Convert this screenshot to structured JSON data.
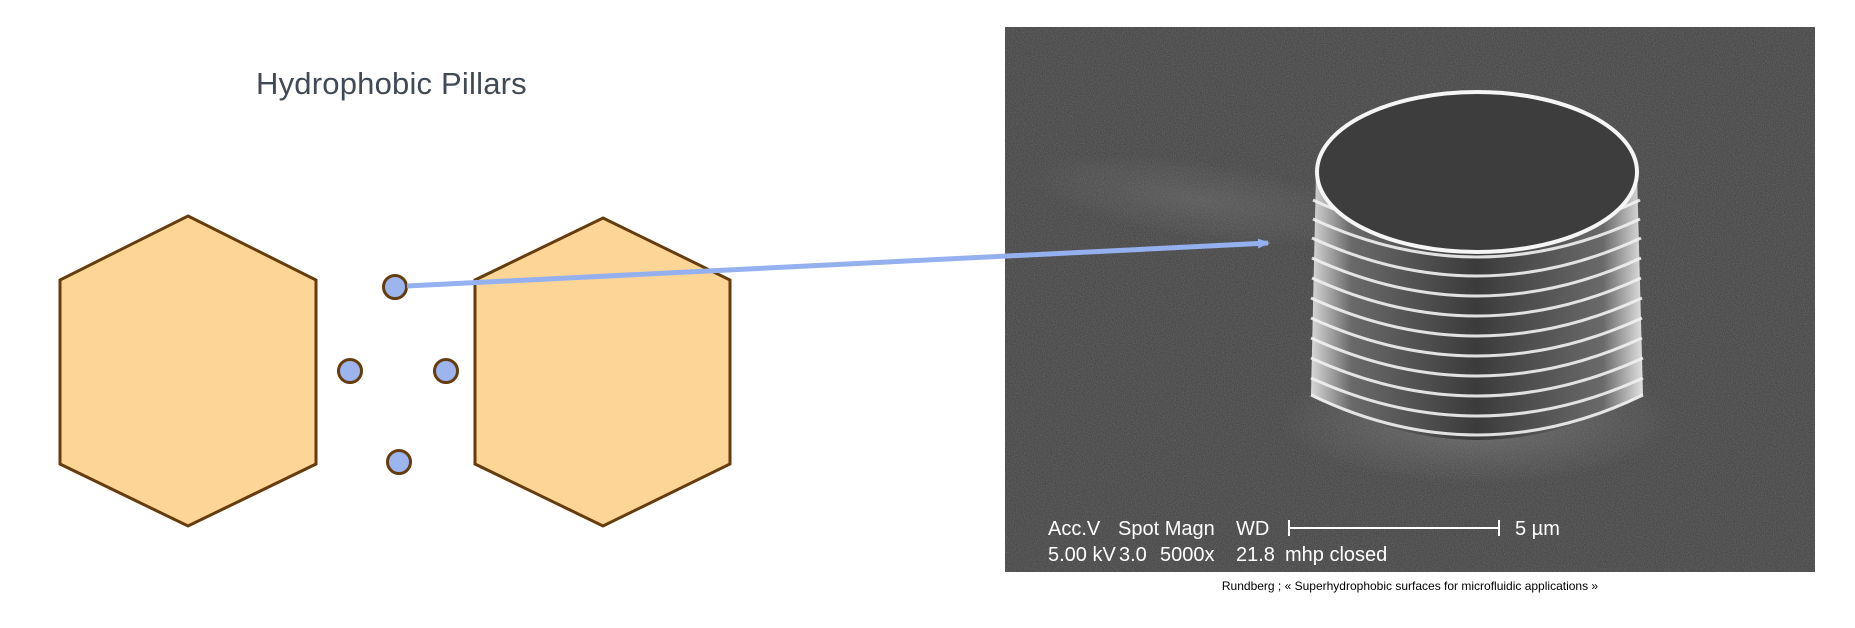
{
  "title": "Hydrophobic Pillars",
  "colors": {
    "hexagon_fill": "#fcd597",
    "hexagon_stroke": "#663c0c",
    "pillar_fill": "#9db5ef",
    "pillar_stroke": "#663c0c",
    "arrow": "#94b0ee",
    "micrograph_background": "#3f3f3f"
  },
  "micrograph": {
    "subject": "scanning electron micrograph of a single ringed cylindrical micro-pillar",
    "labels_row1": {
      "acc_v": "Acc.V",
      "spot_magn": "Spot Magn",
      "wd": "WD",
      "scale": "5 µm"
    },
    "labels_row2": {
      "voltage": "5.00 kV",
      "spot": "3.0",
      "magnification": "5000x",
      "working_distance": "21.8",
      "sample": "mhp closed"
    }
  },
  "caption": "Rundberg ; « Superhydrophobic surfaces for microfluidic applications »"
}
